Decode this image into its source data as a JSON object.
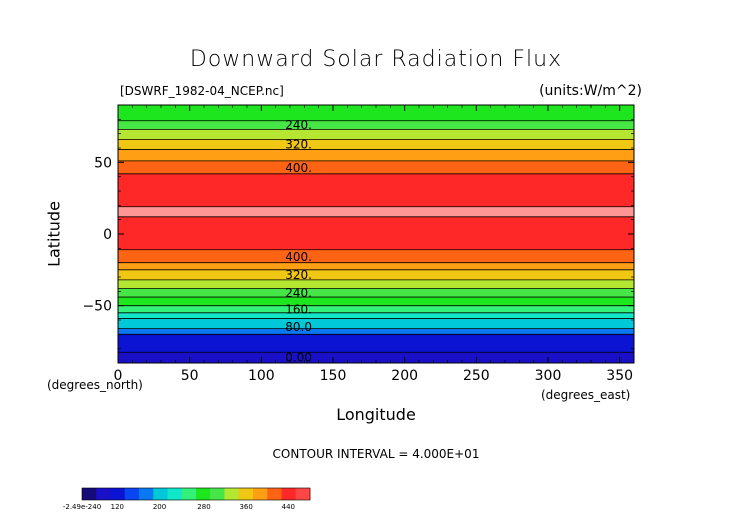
{
  "chart_data": {
    "type": "heatmap",
    "title": "Downward Solar Radiation Flux",
    "source_label": "[DSWRF_1982-04_NCEP.nc]",
    "units_label": "(units:W/m^2)",
    "xlabel": "Longitude",
    "ylabel": "Latitude",
    "x_unit_label": "(degrees_east)",
    "y_unit_label": "(degrees_north)",
    "xlim": [
      0,
      360
    ],
    "ylim": [
      -90,
      90
    ],
    "x_ticks": [
      0,
      50,
      100,
      150,
      200,
      250,
      300,
      350
    ],
    "y_ticks": [
      -50,
      0,
      50
    ],
    "x_tick_labels": [
      "0",
      "50",
      "100",
      "150",
      "200",
      "250",
      "300",
      "350"
    ],
    "y_tick_labels": [
      "−50",
      "0",
      "50"
    ],
    "contour_interval_text": "CONTOUR INTERVAL = 4.000E+01",
    "bands": [
      {
        "lat_min": -90,
        "lat_max": -82.5,
        "color": "#1a10c8"
      },
      {
        "lat_min": -82.5,
        "lat_max": -70,
        "color": "#0a14d2"
      },
      {
        "lat_min": -70,
        "lat_max": -66,
        "color": "#0a78f0"
      },
      {
        "lat_min": -66,
        "lat_max": -59,
        "color": "#00c8d8"
      },
      {
        "lat_min": -59,
        "lat_max": -55,
        "color": "#12e6c8"
      },
      {
        "lat_min": -55,
        "lat_max": -50,
        "color": "#32f078"
      },
      {
        "lat_min": -50,
        "lat_max": -44,
        "color": "#1ee61e"
      },
      {
        "lat_min": -44,
        "lat_max": -38,
        "color": "#46e646"
      },
      {
        "lat_min": -38,
        "lat_max": -32,
        "color": "#b4e632"
      },
      {
        "lat_min": -32,
        "lat_max": -25,
        "color": "#f0c814"
      },
      {
        "lat_min": -25,
        "lat_max": -20,
        "color": "#ffa014"
      },
      {
        "lat_min": -20,
        "lat_max": -11,
        "color": "#ff6414"
      },
      {
        "lat_min": -11,
        "lat_max": 12,
        "color": "#ff2828"
      },
      {
        "lat_min": 12,
        "lat_max": 19,
        "color": "#ff9696"
      },
      {
        "lat_min": 19,
        "lat_max": 42,
        "color": "#ff2828"
      },
      {
        "lat_min": 42,
        "lat_max": 51,
        "color": "#ff6414"
      },
      {
        "lat_min": 51,
        "lat_max": 59,
        "color": "#ffa014"
      },
      {
        "lat_min": 59,
        "lat_max": 66,
        "color": "#f0c814"
      },
      {
        "lat_min": 66,
        "lat_max": 73,
        "color": "#b4e632"
      },
      {
        "lat_min": 73,
        "lat_max": 79,
        "color": "#46e646"
      },
      {
        "lat_min": 79,
        "lat_max": 90,
        "color": "#1ee61e"
      }
    ],
    "contour_lines": [
      -82.5,
      -70,
      -66,
      -59,
      -55,
      -50,
      -44,
      -38,
      -32,
      -25,
      -20,
      -11,
      12,
      19,
      42,
      51,
      59,
      66,
      73,
      79
    ],
    "contour_labels": [
      {
        "text": "240.",
        "lat": 76
      },
      {
        "text": "320.",
        "lat": 62.5
      },
      {
        "text": "400.",
        "lat": 46
      },
      {
        "text": "400.",
        "lat": -16
      },
      {
        "text": "320.",
        "lat": -28.5
      },
      {
        "text": "240.",
        "lat": -41
      },
      {
        "text": "160.",
        "lat": -52.5
      },
      {
        "text": "80.0",
        "lat": -65
      },
      {
        "text": "0.00",
        "lat": -86
      }
    ],
    "colorbar": {
      "colors": [
        "#140a78",
        "#1a10c8",
        "#0a14d2",
        "#0a46f0",
        "#0a78f0",
        "#00c8d8",
        "#12e6c8",
        "#32f078",
        "#1ee61e",
        "#46e646",
        "#b4e632",
        "#f0c814",
        "#ffa014",
        "#ff6414",
        "#ff2828",
        "#ff4646"
      ],
      "labels": [
        "-2.49e-240",
        "120",
        "200",
        "280",
        "360",
        "440"
      ]
    }
  }
}
